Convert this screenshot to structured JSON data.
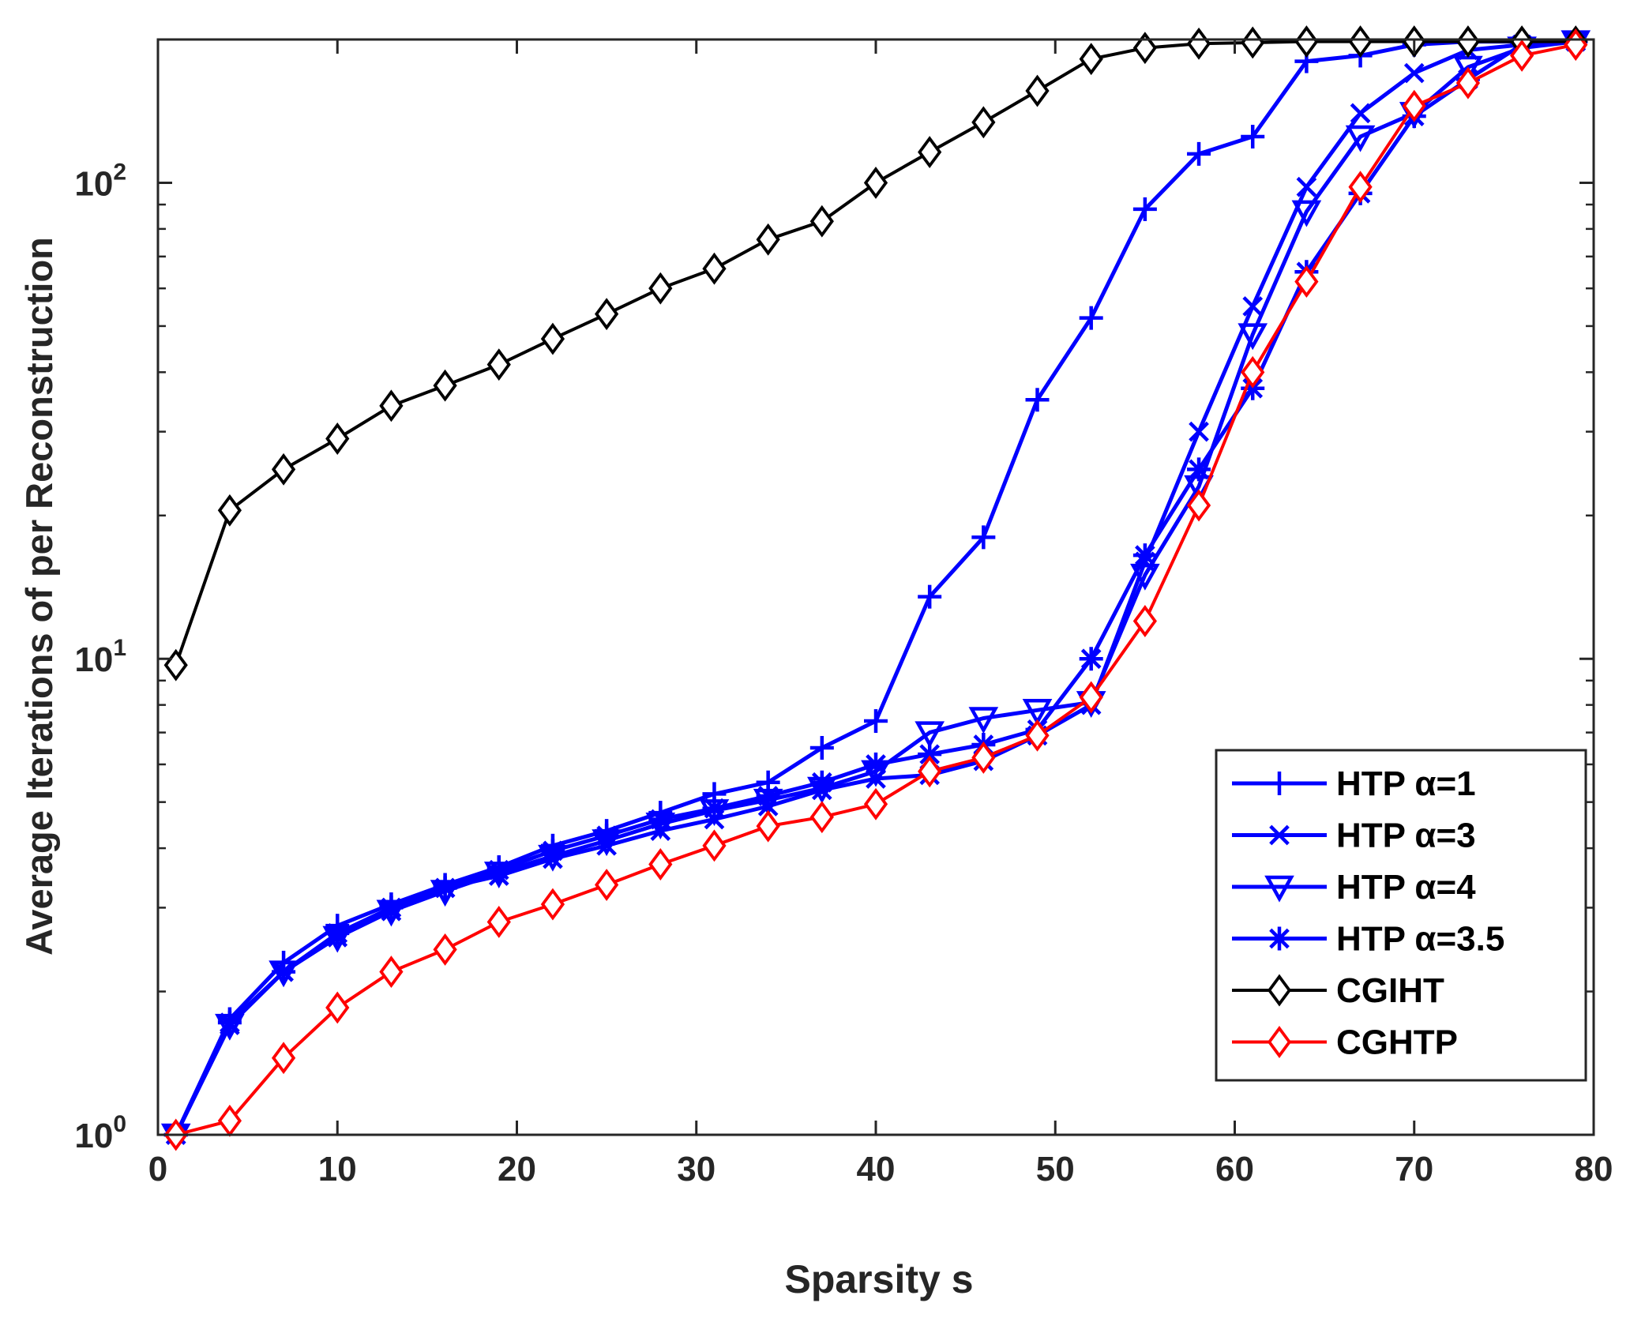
{
  "chart_data": {
    "type": "line",
    "title": "",
    "xlabel": "Sparsity s",
    "ylabel": "Average Iterations of per Reconstruction",
    "xlim": [
      0,
      80
    ],
    "ylim": [
      1,
      200
    ],
    "yscale": "log",
    "x_ticks": [
      0,
      10,
      20,
      30,
      40,
      50,
      60,
      70,
      80
    ],
    "x_tick_labels": [
      "0",
      "10",
      "20",
      "30",
      "40",
      "50",
      "60",
      "70",
      "80"
    ],
    "y_ticks": [
      {
        "value": 1,
        "base": "10",
        "exp": "0"
      },
      {
        "value": 10,
        "base": "10",
        "exp": "1"
      },
      {
        "value": 100,
        "base": "10",
        "exp": "2"
      }
    ],
    "grid": false,
    "legend_position": "lower-right",
    "x": [
      1,
      4,
      7,
      10,
      13,
      16,
      19,
      22,
      25,
      28,
      31,
      34,
      37,
      40,
      43,
      46,
      49,
      52,
      55,
      58,
      61,
      64,
      67,
      70,
      73,
      76,
      79
    ],
    "series": [
      {
        "name": "HTP α=1",
        "color": "#0000ff",
        "marker": "plus",
        "bold": true,
        "values": [
          1.0,
          1.75,
          2.3,
          2.75,
          3.05,
          3.35,
          3.65,
          4.05,
          4.35,
          4.75,
          5.2,
          5.5,
          6.5,
          7.4,
          13.5,
          18,
          35,
          52,
          88,
          115,
          125,
          180,
          185,
          195,
          198,
          198,
          198
        ]
      },
      {
        "name": "HTP α=3",
        "color": "#0000ff",
        "marker": "x",
        "bold": true,
        "values": [
          1.0,
          1.7,
          2.2,
          2.6,
          2.95,
          3.3,
          3.5,
          3.8,
          4.05,
          4.35,
          4.6,
          4.9,
          5.3,
          5.6,
          5.7,
          6.1,
          6.9,
          8.0,
          16,
          30,
          55,
          98,
          140,
          170,
          190,
          195,
          198
        ]
      },
      {
        "name": "HTP α=4",
        "color": "#0000ff",
        "marker": "triangle-down",
        "bold": true,
        "values": [
          1.0,
          1.7,
          2.2,
          2.6,
          2.95,
          3.25,
          3.55,
          3.85,
          4.15,
          4.5,
          4.8,
          5.05,
          5.35,
          5.8,
          7.0,
          7.5,
          7.8,
          8.1,
          15,
          23,
          48,
          87,
          125,
          140,
          175,
          192,
          198
        ]
      },
      {
        "name": "HTP α=3.5",
        "color": "#0000ff",
        "marker": "asterisk",
        "bold": true,
        "values": [
          1.0,
          1.72,
          2.2,
          2.65,
          3.0,
          3.3,
          3.6,
          3.95,
          4.25,
          4.6,
          4.85,
          5.15,
          5.5,
          6.0,
          6.3,
          6.6,
          7.1,
          10,
          16.5,
          25,
          37,
          65,
          95,
          138,
          165,
          195,
          198
        ]
      },
      {
        "name": "CGIHT",
        "color": "#000000",
        "marker": "diamond",
        "bold": false,
        "values": [
          9.7,
          20.5,
          25,
          29,
          34,
          37.5,
          41.5,
          47,
          53,
          60,
          66,
          76,
          83,
          100,
          116,
          134,
          156,
          182,
          192,
          196,
          197,
          198,
          198,
          198,
          198,
          198,
          198
        ]
      },
      {
        "name": "CGHTP",
        "color": "#ff0000",
        "marker": "diamond",
        "bold": false,
        "values": [
          1.0,
          1.07,
          1.45,
          1.85,
          2.2,
          2.45,
          2.8,
          3.05,
          3.35,
          3.7,
          4.05,
          4.45,
          4.65,
          4.95,
          5.8,
          6.2,
          6.9,
          8.3,
          12,
          21,
          40,
          62,
          98,
          145,
          162,
          185,
          195
        ]
      }
    ]
  }
}
